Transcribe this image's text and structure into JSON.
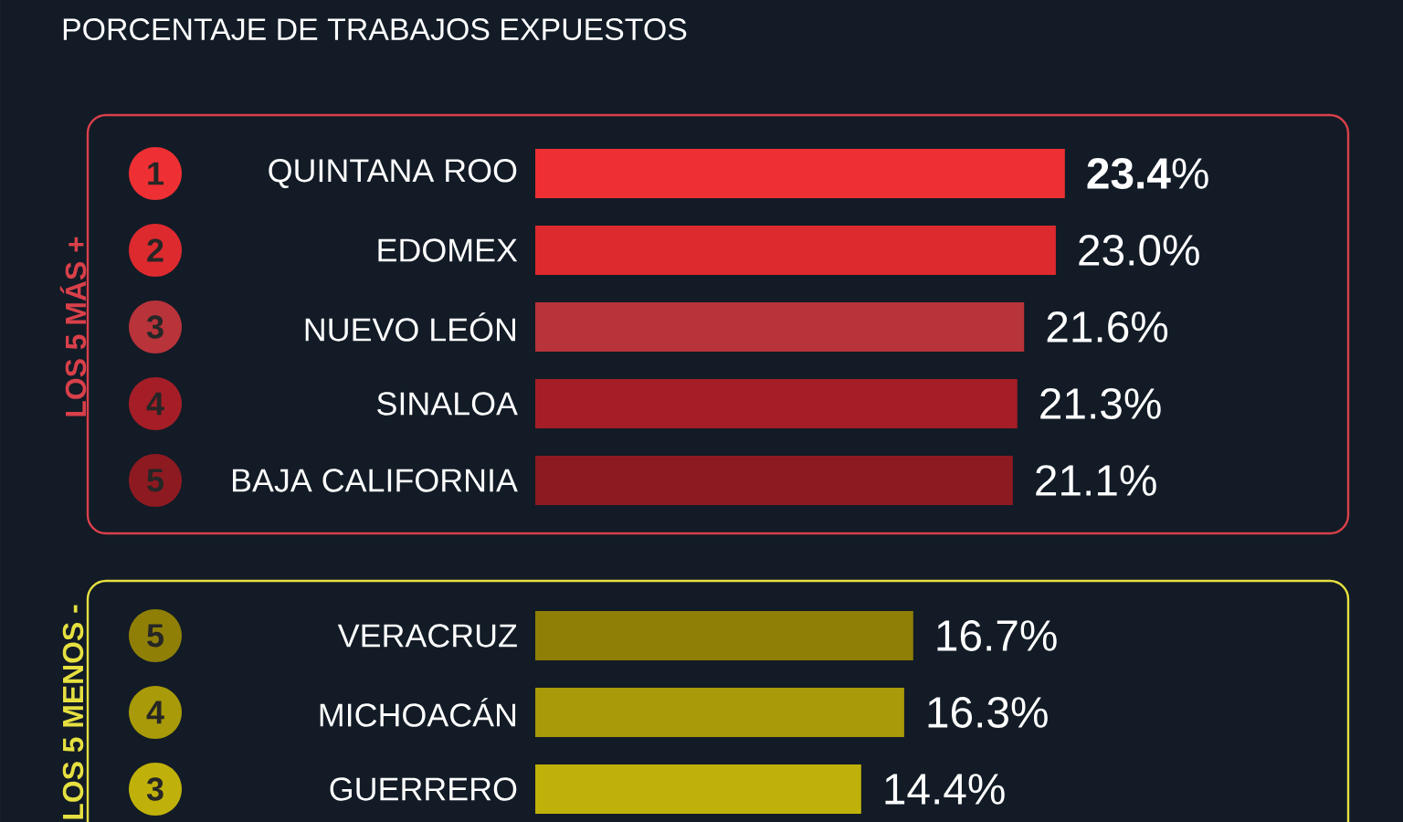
{
  "chart_data": [
    {
      "type": "bar",
      "orientation": "horizontal",
      "title": "PORCENTAJE DE TRABAJOS EXPUESTOS",
      "ylabel": "LOS 5 MÁS +",
      "categories": [
        "QUINTANA ROO",
        "EDOMEX",
        "NUEVO LEÓN",
        "SINALOA",
        "BAJA CALIFORNIA"
      ],
      "values": [
        23.4,
        23.0,
        21.6,
        21.3,
        21.1
      ],
      "colors": [
        "#ee3034",
        "#dd2a2f",
        "#b8333a",
        "#a51e27",
        "#8e1a21"
      ],
      "value_labels": [
        "**23.4**%",
        "23.0%",
        "21.6%",
        "21.3%",
        "21.1%"
      ],
      "annotations": [
        "1",
        "2",
        "3",
        "4",
        "5"
      ]
    },
    {
      "type": "bar",
      "orientation": "horizontal",
      "ylabel": "LOS 5 MENOS -",
      "categories": [
        "VERACRUZ",
        "MICHOACÁN",
        "GUERRERO"
      ],
      "values": [
        16.7,
        16.3,
        14.4
      ],
      "colors": [
        "#8f7f06",
        "#a89a08",
        "#c0b10a"
      ],
      "value_labels": [
        "16.7%",
        "16.3%",
        "14.4%"
      ],
      "annotations": [
        "5",
        "4",
        "3"
      ]
    }
  ]
}
